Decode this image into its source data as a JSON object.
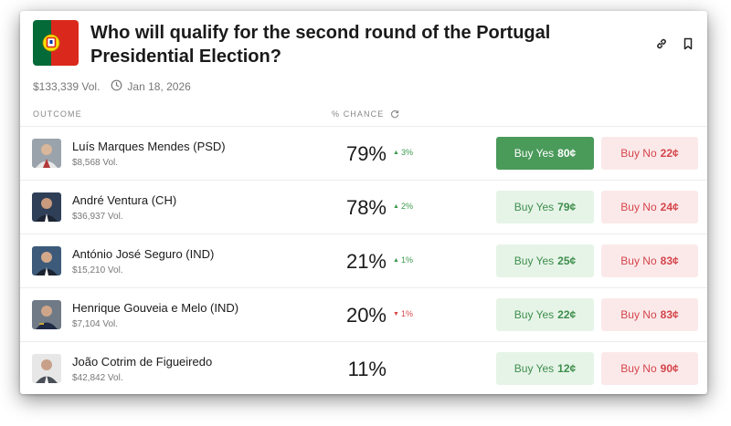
{
  "market": {
    "title": "Who will qualify for the second round of the Portugal Presidential Election?",
    "volume": "$133,339 Vol.",
    "date": "Jan 18, 2026"
  },
  "columns": {
    "outcome": "OUTCOME",
    "chance": "% CHANCE"
  },
  "icons": [
    "link-icon",
    "bookmark-icon",
    "clock-icon",
    "refresh-icon",
    "portugal-flag-icon"
  ],
  "colors": {
    "green": "#4a9a5a",
    "red": "#d4454a",
    "yes_bg": "#e6f4e8",
    "no_bg": "#fbe9ea"
  },
  "outcomes": [
    {
      "name": "Luís Marques Mendes (PSD)",
      "volume": "$8,568 Vol.",
      "chance": "79%",
      "delta": "3%",
      "direction": "up",
      "yes_label": "Buy Yes",
      "yes_price": "80¢",
      "no_label": "Buy No",
      "no_price": "22¢"
    },
    {
      "name": "André Ventura (CH)",
      "volume": "$36,937 Vol.",
      "chance": "78%",
      "delta": "2%",
      "direction": "up",
      "yes_label": "Buy Yes",
      "yes_price": "79¢",
      "no_label": "Buy No",
      "no_price": "24¢"
    },
    {
      "name": "António José Seguro (IND)",
      "volume": "$15,210 Vol.",
      "chance": "21%",
      "delta": "1%",
      "direction": "up",
      "yes_label": "Buy Yes",
      "yes_price": "25¢",
      "no_label": "Buy No",
      "no_price": "83¢"
    },
    {
      "name": "Henrique Gouveia e Melo (IND)",
      "volume": "$7,104 Vol.",
      "chance": "20%",
      "delta": "1%",
      "direction": "down",
      "yes_label": "Buy Yes",
      "yes_price": "22¢",
      "no_label": "Buy No",
      "no_price": "83¢"
    },
    {
      "name": "João Cotrim de Figueiredo",
      "volume": "$42,842 Vol.",
      "chance": "11%",
      "delta": "",
      "direction": "none",
      "yes_label": "Buy Yes",
      "yes_price": "12¢",
      "no_label": "Buy No",
      "no_price": "90¢"
    }
  ]
}
